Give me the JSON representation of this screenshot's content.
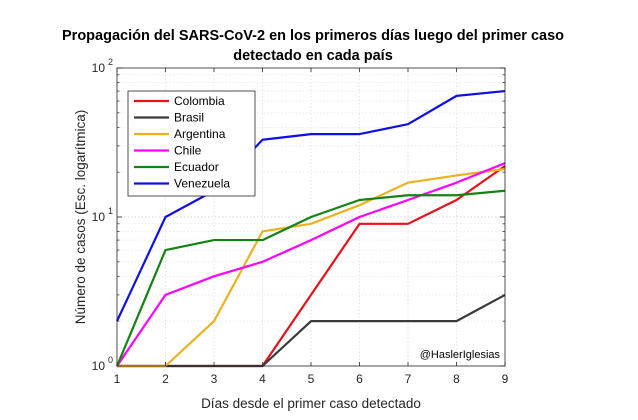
{
  "chart_data": {
    "type": "line",
    "title_lines": [
      "Propagación del SARS-CoV-2 en los primeros días luego del primer caso",
      "detectado en cada país"
    ],
    "xlabel": "Días desde el primer caso detectado",
    "ylabel": "Número de casos (Esc. logarítmica)",
    "x": [
      1,
      2,
      3,
      4,
      5,
      6,
      7,
      8,
      9
    ],
    "xlim": [
      1,
      9
    ],
    "ylim": [
      1,
      100
    ],
    "y_scale": "log",
    "x_ticks": [
      "1",
      "2",
      "3",
      "4",
      "5",
      "6",
      "7",
      "8",
      "9"
    ],
    "y_ticks": [
      {
        "base": "10",
        "exp": "0",
        "value": 1
      },
      {
        "base": "10",
        "exp": "1",
        "value": 10
      },
      {
        "base": "10",
        "exp": "2",
        "value": 100
      }
    ],
    "grid": true,
    "legend_position": "top-left",
    "annotation": "@HaslerIglesias",
    "series": [
      {
        "name": "Colombia",
        "color": "#e8101a",
        "values": [
          1,
          1,
          1,
          1,
          3,
          9,
          9,
          13,
          22
        ]
      },
      {
        "name": "Brasil",
        "color": "#3a3a3a",
        "values": [
          1,
          1,
          1,
          1,
          2,
          2,
          2,
          2,
          3
        ]
      },
      {
        "name": "Argentina",
        "color": "#edb120",
        "values": [
          1,
          1,
          2,
          8,
          9,
          12,
          17,
          19,
          21
        ]
      },
      {
        "name": "Chile",
        "color": "#ff00ff",
        "values": [
          1,
          3,
          4,
          5,
          7,
          10,
          13,
          17,
          23
        ]
      },
      {
        "name": "Ecuador",
        "color": "#138413",
        "values": [
          1,
          6,
          7,
          7,
          10,
          13,
          14,
          14,
          15
        ]
      },
      {
        "name": "Venezuela",
        "color": "#1010e6",
        "values": [
          2,
          10,
          15,
          33,
          36,
          36,
          42,
          65,
          70
        ]
      }
    ]
  }
}
